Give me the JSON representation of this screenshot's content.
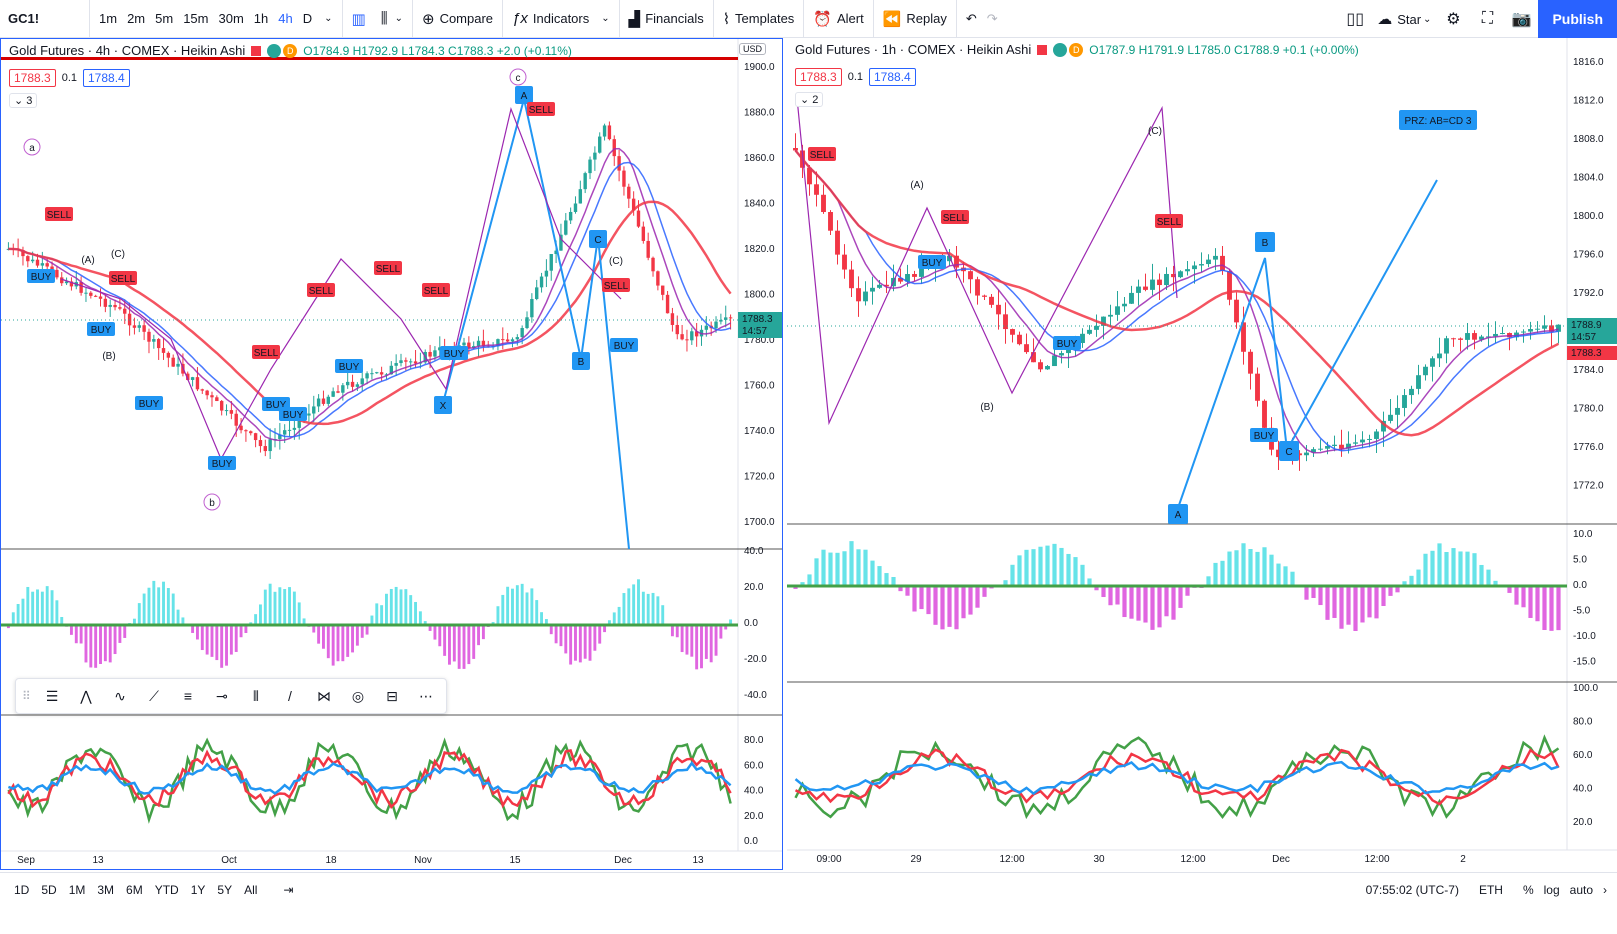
{
  "topbar": {
    "symbol": "GC1!",
    "intervals": [
      "1m",
      "2m",
      "5m",
      "15m",
      "30m",
      "1h",
      "4h",
      "D"
    ],
    "active_interval": "4h",
    "compare": "Compare",
    "indicators": "Indicators",
    "financials": "Financials",
    "templates": "Templates",
    "alert": "Alert",
    "replay": "Replay",
    "star": "Star",
    "publish": "Publish"
  },
  "left": {
    "title": "Gold Futures · 4h · COMEX · Heikin Ashi",
    "ohlc": "O1784.9 H1792.9 L1784.3 C1788.3 +2.0 (+0.11%)",
    "sell_price": "1788.3",
    "spread": "0.1",
    "buy_price": "1788.4",
    "indicator_count": "3",
    "currency": "USD",
    "price_ticks": [
      "1900.0",
      "1880.0",
      "1860.0",
      "1840.0",
      "1820.0",
      "1800.0",
      "1780.0",
      "1760.0",
      "1740.0",
      "1720.0",
      "1700.0"
    ],
    "current_price": "1788.3",
    "countdown": "14:57",
    "osc_ticks": [
      "40.0",
      "20.0",
      "0.0",
      "-20.0",
      "-40.0"
    ],
    "rsi_ticks": [
      "80.0",
      "60.0",
      "40.0",
      "20.0",
      "0.0"
    ],
    "time_ticks": [
      "Sep",
      "13",
      "Oct",
      "18",
      "Nov",
      "15",
      "Dec",
      "13"
    ],
    "wave_labels": [
      "a",
      "b",
      "c"
    ],
    "pattern_labels": [
      "A",
      "B",
      "C",
      "X"
    ],
    "sub_labels": [
      "(A)",
      "(B)",
      "(C)"
    ]
  },
  "right": {
    "title": "Gold Futures · 1h · COMEX · Heikin Ashi",
    "ohlc": "O1787.9 H1791.9 L1785.0 C1788.9 +0.1 (+0.00%)",
    "sell_price": "1788.3",
    "spread": "0.1",
    "buy_price": "1788.4",
    "indicator_count": "2",
    "price_ticks": [
      "1816.0",
      "1812.0",
      "1808.0",
      "1804.0",
      "1800.0",
      "1796.0",
      "1792.0",
      "1788.0",
      "1784.0",
      "1780.0",
      "1776.0",
      "1772.0"
    ],
    "current_price": "1788.9",
    "countdown": "14:57",
    "sell_marker": "1788.3",
    "osc_ticks": [
      "10.0",
      "5.0",
      "0.0",
      "-5.0",
      "-10.0",
      "-15.0"
    ],
    "rsi_ticks": [
      "100.0",
      "80.0",
      "60.0",
      "40.0",
      "20.0"
    ],
    "time_ticks": [
      "09:00",
      "29",
      "12:00",
      "30",
      "12:00",
      "Dec",
      "12:00",
      "2"
    ],
    "prz_label": "PRZ: AB=CD 3",
    "pattern_labels": [
      "A",
      "B",
      "C"
    ],
    "sub_labels": [
      "(A)",
      "(B)",
      "(C)"
    ]
  },
  "bottombar": {
    "ranges": [
      "1D",
      "5D",
      "1M",
      "3M",
      "6M",
      "YTD",
      "1Y",
      "5Y",
      "All"
    ],
    "clock": "07:55:02 (UTC-7)",
    "session": "ETH",
    "percent": "%",
    "log": "log",
    "auto": "auto"
  },
  "colors": {
    "accent": "#2962ff",
    "up": "#26a69a",
    "down": "#f23645",
    "purple": "#9c27b0"
  }
}
